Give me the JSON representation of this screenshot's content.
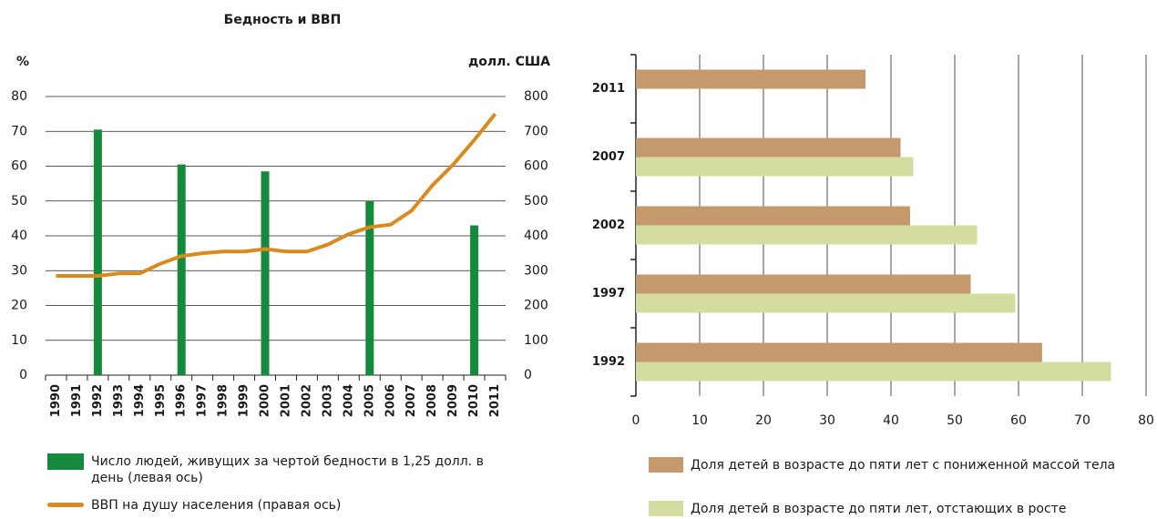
{
  "chart_data": [
    {
      "type": "bar_line",
      "title": "Бедность и ВВП",
      "ylabel": "%",
      "y2label": "долл. США",
      "categories": [
        "1990",
        "1991",
        "1992",
        "1993",
        "1994",
        "1995",
        "1996",
        "1997",
        "1998",
        "1999",
        "2000",
        "2001",
        "2002",
        "2003",
        "2004",
        "2005",
        "2006",
        "2007",
        "2008",
        "2009",
        "2010",
        "2011"
      ],
      "series": [
        {
          "name": "Число людей, живущих за чертой бедности в 1,25 долл. в день (левая ось)",
          "color": "#168a3c",
          "type": "bar",
          "values": [
            null,
            null,
            70.5,
            null,
            null,
            null,
            60.5,
            null,
            null,
            null,
            58.5,
            null,
            null,
            null,
            null,
            50,
            null,
            null,
            null,
            null,
            43,
            null
          ]
        },
        {
          "name": "ВВП на душу населения (правая ось)",
          "color": "#d88a1e",
          "type": "line",
          "axis": "y2",
          "values": [
            285,
            285,
            285,
            292,
            292,
            320,
            342,
            350,
            355,
            355,
            362,
            355,
            355,
            375,
            405,
            425,
            432,
            472,
            545,
            605,
            675,
            750
          ]
        }
      ],
      "ylim": [
        0,
        80
      ],
      "yticks": [
        0,
        10,
        20,
        30,
        40,
        50,
        60,
        70,
        80
      ],
      "y2lim": [
        0,
        800
      ],
      "y2ticks": [
        0,
        100,
        200,
        300,
        400,
        500,
        600,
        700,
        800
      ],
      "grid": true
    },
    {
      "type": "hbar",
      "categories": [
        "2011",
        "2007",
        "2002",
        "1997",
        "1992"
      ],
      "series": [
        {
          "name": "Доля детей в возрасте до пяти лет с пониженной массой тела",
          "color": "#c49a6c",
          "values": [
            36,
            41.5,
            43,
            52.5,
            63.7
          ]
        },
        {
          "name": "Доля детей в возрасте до пяти лет, отстающих в росте",
          "color": "#d5dca0",
          "values": [
            null,
            43.5,
            53.5,
            59.5,
            74.5
          ]
        }
      ],
      "xlim": [
        0,
        80
      ],
      "xticks": [
        0,
        10,
        20,
        30,
        40,
        50,
        60,
        70,
        80
      ],
      "grid": true
    }
  ]
}
